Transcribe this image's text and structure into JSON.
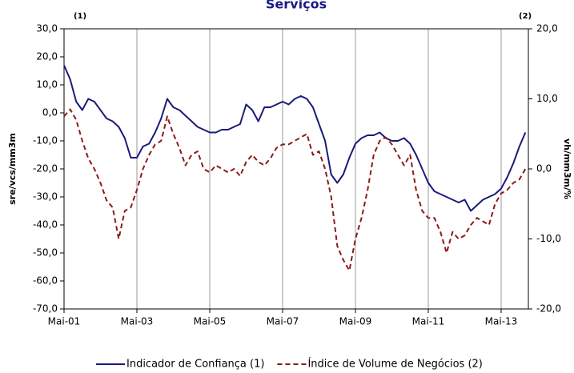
{
  "chart_data": {
    "type": "line",
    "title": "Serviços",
    "annotations": [
      "(1)",
      "(2)"
    ],
    "ylabel": "sre/vcs/mm3m",
    "y2label": "vh/mm3m/%",
    "categories": [
      "Mai-01",
      null,
      null,
      null,
      null,
      null,
      null,
      null,
      null,
      null,
      null,
      null,
      "Mai-03",
      null,
      null,
      null,
      null,
      null,
      null,
      null,
      null,
      null,
      null,
      null,
      "Mai-05",
      null,
      null,
      null,
      null,
      null,
      null,
      null,
      null,
      null,
      null,
      null,
      "Mai-07",
      null,
      null,
      null,
      null,
      null,
      null,
      null,
      null,
      null,
      null,
      null,
      "Mai-09",
      null,
      null,
      null,
      null,
      null,
      null,
      null,
      null,
      null,
      null,
      null,
      "Mai-11",
      null,
      null,
      null,
      null,
      null,
      null,
      null,
      null,
      null,
      null,
      null,
      "Mai-13",
      null,
      null,
      null,
      null
    ],
    "series": [
      {
        "name": "Indicador de Confiança (1)",
        "color": "#1a1a7a",
        "axis": "y",
        "dash": false,
        "values": [
          17,
          12,
          4,
          1,
          5,
          4,
          1,
          -2,
          -3,
          -5,
          -9,
          -16,
          -16,
          -12,
          -11,
          -7,
          -2,
          5,
          2,
          1,
          -1,
          -3,
          -5,
          -6,
          -7,
          -7,
          -6,
          -6,
          -5,
          -4,
          3,
          1,
          -3,
          2,
          2,
          3,
          4,
          3,
          5,
          6,
          5,
          2,
          -4,
          -10,
          -22,
          -25,
          -22,
          -16,
          -11,
          -9,
          -8,
          -8,
          -7,
          -9,
          -10,
          -10,
          -9,
          -11,
          -15,
          -20,
          -25,
          -28,
          -29,
          -30,
          -31,
          -32,
          -31,
          -35,
          -33,
          -31,
          -30,
          -29,
          -27,
          -23,
          -18,
          -12,
          -7
        ]
      },
      {
        "name": "Índice de Volume de Negócios (2)",
        "color": "#8b1a1a",
        "axis": "y2",
        "dash": true,
        "values": [
          7.5,
          8.5,
          7,
          4,
          1.5,
          0,
          -2,
          -4.5,
          -5.5,
          -10,
          -6,
          -5.5,
          -3,
          0,
          2,
          3.5,
          4,
          7.5,
          5,
          3,
          0.5,
          2,
          2.5,
          0,
          -0.5,
          0.5,
          0,
          -0.5,
          0,
          -1,
          1,
          2,
          1,
          0.5,
          1.5,
          3,
          3.5,
          3.5,
          4,
          4.5,
          5,
          2,
          2.5,
          0,
          -4,
          -11,
          -13,
          -14.5,
          -10,
          -7,
          -3,
          2,
          4,
          4.5,
          3.5,
          2,
          0.5,
          2,
          -3,
          -6,
          -7,
          -7,
          -9,
          -12,
          -9,
          -10,
          -9.5,
          -8,
          -7,
          -7.5,
          -8,
          -5,
          -3.5,
          -3,
          -2,
          -1.5,
          0
        ]
      }
    ],
    "ylim": [
      -70,
      30
    ],
    "yticks": [
      {
        "value": 30,
        "label": "30,0"
      },
      {
        "value": 20,
        "label": "20,0"
      },
      {
        "value": 10,
        "label": "10,0"
      },
      {
        "value": 0,
        "label": "0,0"
      },
      {
        "value": -10,
        "label": "-10,0"
      },
      {
        "value": -20,
        "label": "-20,0"
      },
      {
        "value": -30,
        "label": "-30,0"
      },
      {
        "value": -40,
        "label": "-40,0"
      },
      {
        "value": -50,
        "label": "-50,0"
      },
      {
        "value": -60,
        "label": "-60,0"
      },
      {
        "value": -70,
        "label": "-70,0"
      }
    ],
    "y2lim": [
      -20,
      20
    ],
    "y2ticks": [
      {
        "value": 20,
        "label": "20,0"
      },
      {
        "value": 10,
        "label": "10,0"
      },
      {
        "value": 0,
        "label": "0,0"
      },
      {
        "value": -10,
        "label": "-10,0"
      },
      {
        "value": -20,
        "label": "-20,0"
      }
    ],
    "grid": "x",
    "legend": "bottom"
  }
}
